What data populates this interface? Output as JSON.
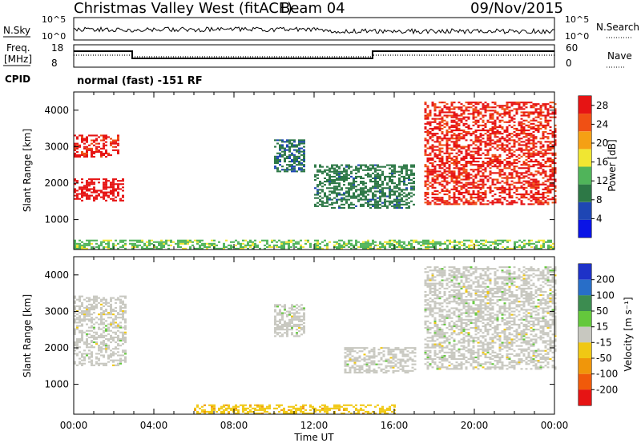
{
  "header": {
    "station": "Christmas Valley West (fitACF)",
    "beam": "Beam 04",
    "date": "09/Nov/2015"
  },
  "control_panels": {
    "nsky_label": "N.Sky",
    "nsearch_label": "N.Search",
    "noise_ticks": [
      "10^5",
      "10^0"
    ],
    "freq_label": "Freq.",
    "freq_unit": "[MHz]",
    "freq_ticks": [
      "18",
      "8"
    ],
    "nave_label": "Nave",
    "nave_ticks": [
      "60",
      "0"
    ],
    "cpid_label": "CPID",
    "cpid_text": "normal (fast)  -151  RF"
  },
  "colors": {
    "power": [
      "#0a14e6",
      "#1e46b4",
      "#2d7846",
      "#50b45a",
      "#f0e632",
      "#f5a014",
      "#f05014",
      "#e61414"
    ],
    "velocity": [
      "#1e32c8",
      "#286ec8",
      "#3c8c50",
      "#64c83c",
      "#c8c8c0",
      "#f0c814",
      "#f0960a",
      "#f05a0a",
      "#e61414"
    ]
  },
  "chart_data": [
    {
      "type": "heatmap",
      "panel": "power",
      "ylabel": "Slant Range [km]",
      "ylim": [
        180,
        4500
      ],
      "yticks": [
        1000,
        2000,
        3000,
        4000
      ],
      "xlim": [
        0,
        24
      ],
      "xtick_labels": [
        "00:00",
        "04:00",
        "08:00",
        "12:00",
        "16:00",
        "20:00",
        "00:00"
      ],
      "colorbar_label": "Power [dB]",
      "colorbar_ticks": [
        "4",
        "8",
        "12",
        "16",
        "20",
        "24",
        "28"
      ],
      "colorbar_range": [
        0,
        30
      ],
      "features": [
        {
          "t": [
            0.0,
            2.5
          ],
          "range": [
            1500,
            2100
          ],
          "value": 29
        },
        {
          "t": [
            0.0,
            2.2
          ],
          "range": [
            2700,
            3300
          ],
          "value": 27
        },
        {
          "t": [
            10.0,
            11.5
          ],
          "range": [
            2300,
            3200
          ],
          "value": 8
        },
        {
          "t": [
            12.0,
            17.0
          ],
          "range": [
            1300,
            2500
          ],
          "value": 9
        },
        {
          "t": [
            17.5,
            24.0
          ],
          "range": [
            1400,
            4200
          ],
          "value": 27
        },
        {
          "t": [
            0.0,
            24.0
          ],
          "range": [
            180,
            450
          ],
          "value": 14
        }
      ]
    },
    {
      "type": "heatmap",
      "panel": "velocity",
      "ylabel": "Slant Range [km]",
      "ylim": [
        180,
        4500
      ],
      "yticks": [
        1000,
        2000,
        3000,
        4000
      ],
      "xlim": [
        0,
        24
      ],
      "xtick_labels": [
        "00:00",
        "04:00",
        "08:00",
        "12:00",
        "16:00",
        "20:00",
        "00:00"
      ],
      "xlabel": "Time UT",
      "colorbar_label": "Velocity [m s⁻¹]",
      "colorbar_ticks": [
        "200",
        "100",
        "50",
        "15",
        "-15",
        "-50",
        "-100",
        "-200"
      ],
      "colorbar_range": [
        -250,
        250
      ],
      "features": [
        {
          "t": [
            0.0,
            2.6
          ],
          "range": [
            1500,
            3400
          ],
          "value": 0
        },
        {
          "t": [
            10.0,
            11.5
          ],
          "range": [
            2300,
            3200
          ],
          "value": 0
        },
        {
          "t": [
            13.5,
            17.0
          ],
          "range": [
            1300,
            2000
          ],
          "value": 0
        },
        {
          "t": [
            17.5,
            24.0
          ],
          "range": [
            1400,
            4200
          ],
          "value": 0
        },
        {
          "t": [
            6.0,
            16.0
          ],
          "range": [
            180,
            450
          ],
          "value": -60
        }
      ]
    }
  ]
}
